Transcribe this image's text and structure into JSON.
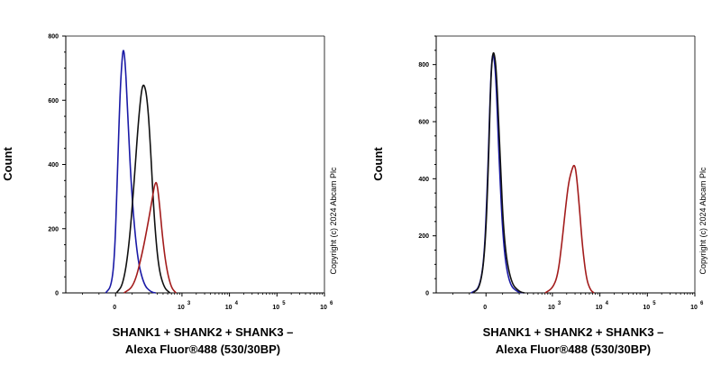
{
  "chart_data": [
    {
      "type": "line",
      "title": "",
      "ylabel": "Count",
      "xlabel_line1": "SHANK1 + SHANK2 + SHANK3 –",
      "xlabel_line2": "Alexa Fluor®488 (530/30BP)",
      "copyright": "Copyright (c) 2024 Abcam Plc",
      "x_scale": "biexponential",
      "xlim": [
        -300,
        1000000
      ],
      "ylim": [
        0,
        800
      ],
      "y_ticks": [
        0,
        200,
        400,
        600,
        800
      ],
      "x_ticks": [
        {
          "value": 0,
          "base": "0",
          "exp": ""
        },
        {
          "value": 1000,
          "base": "10",
          "exp": "3"
        },
        {
          "value": 10000,
          "base": "10",
          "exp": "4"
        },
        {
          "value": 100000,
          "base": "10",
          "exp": "5"
        },
        {
          "value": 1000000,
          "base": "10",
          "exp": "6"
        }
      ],
      "series": [
        {
          "color": "#1a1aa6",
          "points": [
            [
              -60,
              0
            ],
            [
              -25,
              20
            ],
            [
              -5,
              120
            ],
            [
              10,
              350
            ],
            [
              25,
              600
            ],
            [
              38,
              720
            ],
            [
              46,
              762
            ],
            [
              55,
              740
            ],
            [
              70,
              600
            ],
            [
              95,
              320
            ],
            [
              130,
              110
            ],
            [
              170,
              25
            ],
            [
              220,
              3
            ],
            [
              280,
              0
            ]
          ]
        },
        {
          "color": "#111111",
          "points": [
            [
              5,
              0
            ],
            [
              45,
              25
            ],
            [
              80,
              140
            ],
            [
              110,
              330
            ],
            [
              135,
              520
            ],
            [
              155,
              630
            ],
            [
              170,
              655
            ],
            [
              190,
              610
            ],
            [
              215,
              470
            ],
            [
              260,
              230
            ],
            [
              320,
              80
            ],
            [
              420,
              15
            ],
            [
              560,
              0
            ]
          ]
        },
        {
          "color": "#a31c1c",
          "points": [
            [
              50,
              0
            ],
            [
              110,
              20
            ],
            [
              160,
              120
            ],
            [
              200,
              230
            ],
            [
              240,
              300
            ],
            [
              270,
              342
            ],
            [
              295,
              345
            ],
            [
              330,
              290
            ],
            [
              390,
              170
            ],
            [
              480,
              70
            ],
            [
              600,
              15
            ],
            [
              750,
              0
            ]
          ]
        }
      ]
    },
    {
      "type": "line",
      "title": "",
      "ylabel": "Count",
      "xlabel_line1": "SHANK1 + SHANK2 + SHANK3 –",
      "xlabel_line2": "Alexa Fluor®488 (530/30BP)",
      "copyright": "Copyright (c) 2024 Abcam Plc",
      "x_scale": "biexponential",
      "xlim": [
        -300,
        1000000
      ],
      "ylim": [
        0,
        900
      ],
      "y_ticks": [
        0,
        200,
        400,
        600,
        800
      ],
      "x_ticks": [
        {
          "value": 0,
          "base": "0",
          "exp": ""
        },
        {
          "value": 1000,
          "base": "10",
          "exp": "3"
        },
        {
          "value": 10000,
          "base": "10",
          "exp": "4"
        },
        {
          "value": 100000,
          "base": "10",
          "exp": "5"
        },
        {
          "value": 1000000,
          "base": "10",
          "exp": "6"
        }
      ],
      "series": [
        {
          "color": "#1a1aa6",
          "points": [
            [
              -90,
              0
            ],
            [
              -40,
              15
            ],
            [
              -10,
              120
            ],
            [
              10,
              400
            ],
            [
              25,
              700
            ],
            [
              35,
              820
            ],
            [
              45,
              842
            ],
            [
              60,
              760
            ],
            [
              80,
              450
            ],
            [
              105,
              160
            ],
            [
              140,
              30
            ],
            [
              190,
              3
            ],
            [
              250,
              0
            ]
          ]
        },
        {
          "color": "#111111",
          "points": [
            [
              -80,
              0
            ],
            [
              -35,
              18
            ],
            [
              -5,
              150
            ],
            [
              15,
              450
            ],
            [
              28,
              730
            ],
            [
              38,
              830
            ],
            [
              48,
              848
            ],
            [
              63,
              780
            ],
            [
              85,
              470
            ],
            [
              110,
              170
            ],
            [
              150,
              35
            ],
            [
              200,
              4
            ],
            [
              260,
              0
            ]
          ]
        },
        {
          "color": "#a31c1c",
          "points": [
            [
              700,
              0
            ],
            [
              1000,
              15
            ],
            [
              1300,
              60
            ],
            [
              1600,
              180
            ],
            [
              1900,
              300
            ],
            [
              2200,
              390
            ],
            [
              2600,
              435
            ],
            [
              2900,
              452
            ],
            [
              3200,
              420
            ],
            [
              3700,
              300
            ],
            [
              4300,
              160
            ],
            [
              5200,
              50
            ],
            [
              6300,
              10
            ],
            [
              7500,
              0
            ]
          ]
        }
      ]
    }
  ]
}
